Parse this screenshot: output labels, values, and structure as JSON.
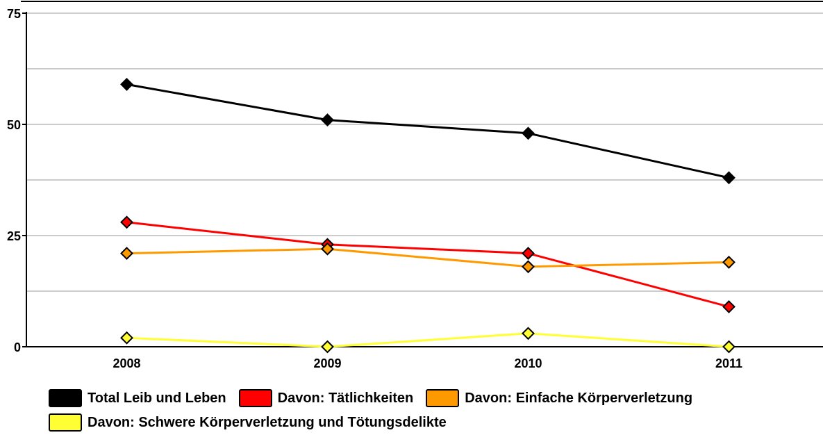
{
  "chart_data": {
    "type": "line",
    "categories": [
      "2008",
      "2009",
      "2010",
      "2011"
    ],
    "series": [
      {
        "name": "Total Leib und Leben",
        "color": "#000000",
        "values": [
          59,
          51,
          48,
          38
        ]
      },
      {
        "name": "Davon: Tätlichkeiten",
        "color": "#ff0000",
        "values": [
          28,
          23,
          21,
          9
        ]
      },
      {
        "name": "Davon: Einfache Körperverletzung",
        "color": "#ff9900",
        "values": [
          21,
          22,
          18,
          19
        ]
      },
      {
        "name": "Davon: Schwere Körperverletzung und Tötungsdelikte",
        "color": "#ffff33",
        "values": [
          2,
          0,
          3,
          0
        ]
      }
    ],
    "ylim": [
      0,
      75
    ],
    "yticks": [
      0,
      25,
      50,
      75
    ],
    "minor_yticks": [
      12.5,
      37.5,
      62.5
    ],
    "grid": true
  }
}
